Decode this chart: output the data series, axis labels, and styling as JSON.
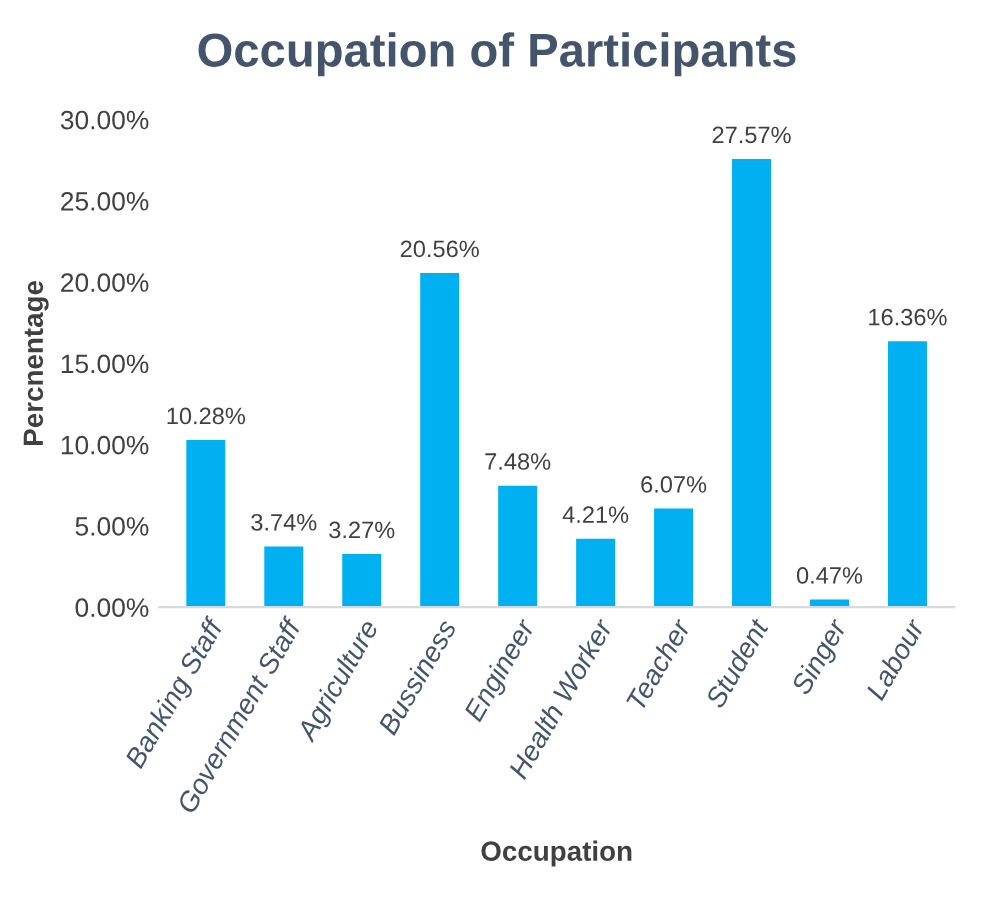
{
  "chart_data": {
    "type": "bar",
    "title": "Occupation of Participants",
    "xlabel": "Occupation",
    "ylabel": "Percnentage",
    "categories": [
      "Banking Staff",
      "Government Staff",
      "Agriculture",
      "Bussiness",
      "Engineer",
      "Health Worker",
      "Teacher",
      "Student",
      "Singer",
      "Labour"
    ],
    "values": [
      10.28,
      3.74,
      3.27,
      20.56,
      7.48,
      4.21,
      6.07,
      27.57,
      0.47,
      16.36
    ],
    "value_labels": [
      "10.28%",
      "3.74%",
      "3.27%",
      "20.56%",
      "7.48%",
      "4.21%",
      "6.07%",
      "27.57%",
      "0.47%",
      "16.36%"
    ],
    "color": "#00b0f0",
    "ylim": [
      0,
      30
    ],
    "yticks": [
      {
        "value": 0,
        "label": "0.00%"
      },
      {
        "value": 5,
        "label": "5.00%"
      },
      {
        "value": 10,
        "label": "10.00%"
      },
      {
        "value": 15,
        "label": "15.00%"
      },
      {
        "value": 20,
        "label": "20.00%"
      },
      {
        "value": 25,
        "label": "25.00%"
      },
      {
        "value": 30,
        "label": "30.00%"
      }
    ],
    "grid": false
  }
}
